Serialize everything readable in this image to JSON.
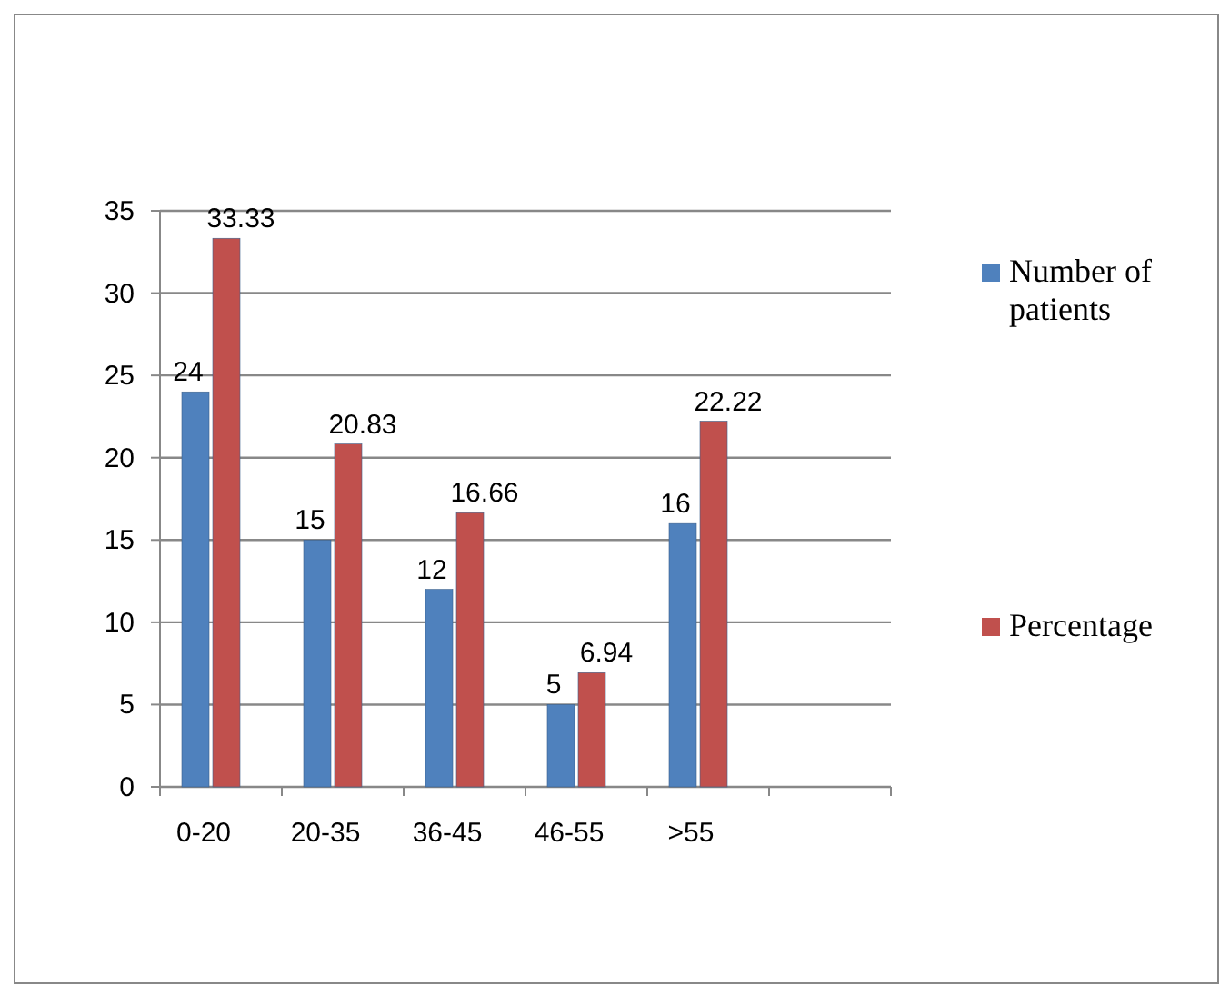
{
  "chart_data": {
    "type": "bar",
    "categories": [
      "0-20",
      "20-35",
      "36-45",
      "46-55",
      ">55",
      null
    ],
    "series": [
      {
        "name": "Number of patients",
        "color": "#4f81bd",
        "values": [
          24,
          15,
          12,
          5,
          16,
          null
        ]
      },
      {
        "name": "Percentage",
        "color": "#c0504d",
        "values": [
          33.33,
          20.83,
          16.66,
          6.94,
          22.22,
          null
        ]
      }
    ],
    "ylim": [
      0,
      35
    ],
    "yticks": [
      0,
      5,
      10,
      15,
      20,
      25,
      30,
      35
    ],
    "grid": "y",
    "legend": "right",
    "data_labels": true
  }
}
